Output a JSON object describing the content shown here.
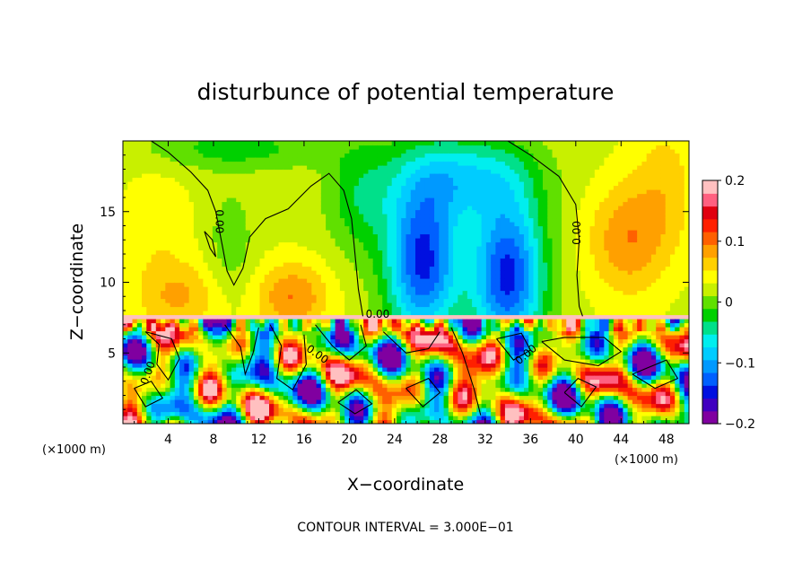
{
  "chart_data": {
    "type": "heatmap",
    "title": "disturbunce of potential temperature",
    "xlabel": "X−coordinate",
    "ylabel": "Z−coordinate",
    "x_unit": "(×1000 m)",
    "x_unit_right": "(×1000 m)",
    "xlim": [
      0,
      50
    ],
    "ylim": [
      0,
      20
    ],
    "x_ticks": [
      4,
      8,
      12,
      16,
      20,
      24,
      28,
      32,
      36,
      40,
      44,
      48
    ],
    "y_ticks": [
      5,
      10,
      15
    ],
    "colorbar": {
      "range": [
        -0.2,
        0.2
      ],
      "tick_values": [
        0.2,
        0.1,
        0,
        -0.1,
        -0.2
      ],
      "tick_labels": [
        "0.2",
        "0.1",
        "0",
        "−0.1",
        "−0.2"
      ],
      "colors": [
        "#8000a0",
        "#4000c0",
        "#0010e0",
        "#0060ff",
        "#0099ff",
        "#00ccff",
        "#00eeee",
        "#00e08a",
        "#00d000",
        "#60e000",
        "#c8f000",
        "#ffff00",
        "#ffd000",
        "#ffa000",
        "#ff6000",
        "#ff2000",
        "#e00010",
        "#ff6080",
        "#ffc0c0"
      ]
    },
    "contour_label": "0.00",
    "contour_interval": "CONTOUR INTERVAL = 3.000E−01"
  }
}
